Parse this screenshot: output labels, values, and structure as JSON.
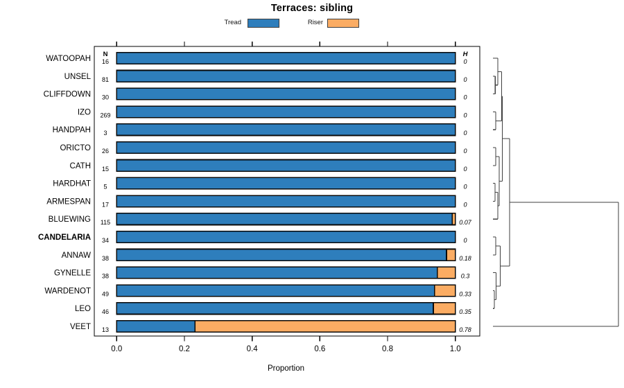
{
  "chart_data": {
    "type": "bar",
    "subtype": "horizontal-stacked-proportion-with-dendrogram",
    "title": "Terraces: sibling",
    "xlabel": "Proportion",
    "xlim": [
      0.0,
      1.0
    ],
    "x_tick_values": [
      0.0,
      0.2,
      0.4,
      0.6,
      0.8,
      1.0
    ],
    "x_tick_labels": [
      "0.0",
      "0.2",
      "0.4",
      "0.6",
      "0.8",
      "1.0"
    ],
    "legend_position": "top",
    "grid": "off",
    "legend": [
      {
        "label": "Tread",
        "color": "#2E7EBC"
      },
      {
        "label": "Riser",
        "color": "#FBAC63"
      }
    ],
    "columns": {
      "n_header": "N",
      "h_header": "H"
    },
    "rows": [
      {
        "name": "WATOOPAH",
        "n": 16,
        "h": "0",
        "tread": 1.0,
        "riser": 0.0,
        "bold": false
      },
      {
        "name": "UNSEL",
        "n": 81,
        "h": "0",
        "tread": 1.0,
        "riser": 0.0,
        "bold": false
      },
      {
        "name": "CLIFFDOWN",
        "n": 30,
        "h": "0",
        "tread": 1.0,
        "riser": 0.0,
        "bold": false
      },
      {
        "name": "IZO",
        "n": 269,
        "h": "0",
        "tread": 1.0,
        "riser": 0.0,
        "bold": false
      },
      {
        "name": "HANDPAH",
        "n": 3,
        "h": "0",
        "tread": 1.0,
        "riser": 0.0,
        "bold": false
      },
      {
        "name": "ORICTO",
        "n": 26,
        "h": "0",
        "tread": 1.0,
        "riser": 0.0,
        "bold": false
      },
      {
        "name": "CATH",
        "n": 15,
        "h": "0",
        "tread": 1.0,
        "riser": 0.0,
        "bold": false
      },
      {
        "name": "HARDHAT",
        "n": 5,
        "h": "0",
        "tread": 1.0,
        "riser": 0.0,
        "bold": false
      },
      {
        "name": "ARMESPAN",
        "n": 17,
        "h": "0",
        "tread": 1.0,
        "riser": 0.0,
        "bold": false
      },
      {
        "name": "BLUEWING",
        "n": 115,
        "h": "0.07",
        "tread": 0.991,
        "riser": 0.009,
        "bold": false
      },
      {
        "name": "CANDELARIA",
        "n": 34,
        "h": "0",
        "tread": 1.0,
        "riser": 0.0,
        "bold": true
      },
      {
        "name": "ANNAW",
        "n": 38,
        "h": "0.18",
        "tread": 0.974,
        "riser": 0.026,
        "bold": false
      },
      {
        "name": "GYNELLE",
        "n": 38,
        "h": "0.3",
        "tread": 0.947,
        "riser": 0.053,
        "bold": false
      },
      {
        "name": "WARDENOT",
        "n": 49,
        "h": "0.33",
        "tread": 0.939,
        "riser": 0.061,
        "bold": false
      },
      {
        "name": "LEO",
        "n": 46,
        "h": "0.35",
        "tread": 0.935,
        "riser": 0.065,
        "bold": false
      },
      {
        "name": "VEET",
        "n": 13,
        "h": "0.78",
        "tread": 0.231,
        "riser": 0.769,
        "bold": false
      }
    ],
    "dendrogram": {
      "h": 1.0,
      "children": [
        {
          "h": 0.133,
          "children": [
            {
              "h": 0.075,
              "children": [
                {
                  "h": 0.069,
                  "children": [
                    {
                      "h": 0.039,
                      "children": [
                        {
                          "leaf": 0
                        },
                        {
                          "h": 0.018,
                          "children": [
                            {
                              "leaf": 1
                            },
                            {
                              "leaf": 2
                            }
                          ]
                        }
                      ]
                    },
                    {
                      "h": 0.022,
                      "children": [
                        {
                          "leaf": 3
                        },
                        {
                          "leaf": 4
                        }
                      ]
                    }
                  ]
                },
                {
                  "h": 0.05,
                  "children": [
                    {
                      "h": 0.022,
                      "children": [
                        {
                          "leaf": 5
                        },
                        {
                          "leaf": 6
                        }
                      ]
                    },
                    {
                      "h": 0.039,
                      "children": [
                        {
                          "h": 0.017,
                          "children": [
                            {
                              "leaf": 7
                            },
                            {
                              "leaf": 8
                            }
                          ]
                        },
                        {
                          "leaf": 9
                        }
                      ]
                    }
                  ]
                }
              ]
            },
            {
              "h": 0.059,
              "children": [
                {
                  "h": 0.022,
                  "children": [
                    {
                      "leaf": 10
                    },
                    {
                      "leaf": 11
                    }
                  ]
                },
                {
                  "h": 0.025,
                  "children": [
                    {
                      "leaf": 12
                    },
                    {
                      "h": 0.011,
                      "children": [
                        {
                          "leaf": 13
                        },
                        {
                          "leaf": 14
                        }
                      ]
                    }
                  ]
                }
              ]
            }
          ]
        },
        {
          "leaf": 15
        }
      ]
    }
  }
}
